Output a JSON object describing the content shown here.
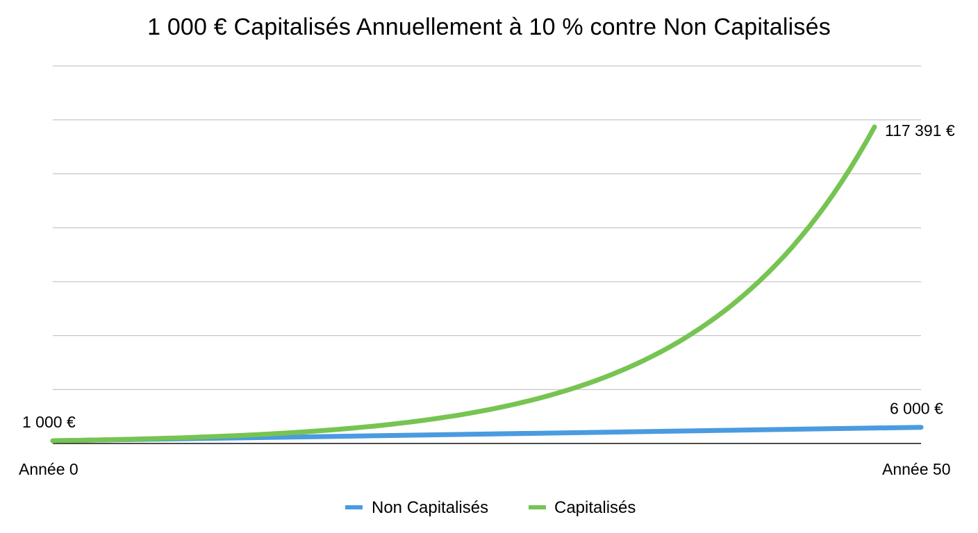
{
  "chart_data": {
    "type": "line",
    "title": "1 000 € Capitalisés Annuellement à 10 % contre Non Capitalisés",
    "x_start": 0,
    "x_end": 50,
    "x_tick_labels": [
      "Année 0",
      "Année 50"
    ],
    "ylim": [
      0,
      140000
    ],
    "grid": true,
    "legend_position": "bottom",
    "series": [
      {
        "name": "Non Capitalisés",
        "color": "#4a9be0",
        "x": [
          0,
          50
        ],
        "values": [
          1000,
          6000
        ]
      },
      {
        "name": "Capitalisés",
        "color": "#76c451",
        "x": [
          0,
          5,
          10,
          15,
          20,
          25,
          30,
          35,
          40,
          45,
          50
        ],
        "values": [
          1000,
          1611,
          2594,
          4177,
          6727,
          10835,
          17449,
          28102,
          45259,
          72890,
          117391
        ]
      }
    ],
    "annotations": {
      "start_label": "1 000 €",
      "end_label_capitalises": "117 391 €",
      "end_label_non_capitalises": "6 000 €"
    }
  }
}
